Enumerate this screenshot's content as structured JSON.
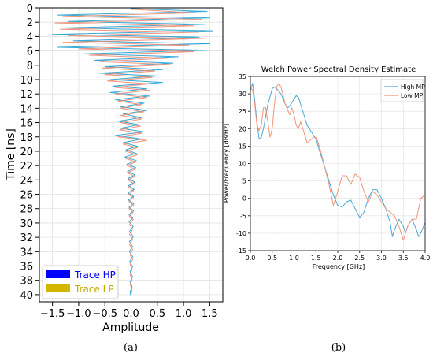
{
  "chart_data": [
    {
      "type": "line",
      "panel_label": "(a)",
      "title": "",
      "xlabel": "Amplitude",
      "ylabel": "Time [ns]",
      "xlim": [
        -1.75,
        1.75
      ],
      "ylim": [
        0,
        41
      ],
      "y_inverted": true,
      "grid": true,
      "legend_placement": "lower-left",
      "xticks": [
        -1.5,
        -1.0,
        -0.5,
        0.0,
        0.5,
        1.0,
        1.5
      ],
      "xtick_labels": [
        "−1.5",
        "−1.0",
        "−0.5",
        "0.0",
        "0.5",
        "1.0",
        "1.5"
      ],
      "yticks": [
        0,
        2,
        4,
        6,
        8,
        10,
        12,
        14,
        16,
        18,
        20,
        22,
        24,
        26,
        28,
        30,
        32,
        34,
        36,
        38,
        40
      ],
      "series": [
        {
          "name": "Trace HP",
          "legend_color": "#0000ff",
          "line_color": "#1f9fd0",
          "points": [
            [
              0.0,
              0.1
            ],
            [
              1.45,
              0.5
            ],
            [
              -1.4,
              1.0
            ],
            [
              1.5,
              1.4
            ],
            [
              -1.2,
              1.9
            ],
            [
              1.4,
              2.3
            ],
            [
              -1.3,
              2.8
            ],
            [
              1.55,
              3.2
            ],
            [
              -1.5,
              3.7
            ],
            [
              1.3,
              4.1
            ],
            [
              -1.1,
              4.6
            ],
            [
              1.5,
              5.0
            ],
            [
              -1.4,
              5.5
            ],
            [
              1.45,
              5.9
            ],
            [
              -0.9,
              6.4
            ],
            [
              0.9,
              6.8
            ],
            [
              -0.7,
              7.3
            ],
            [
              0.8,
              7.7
            ],
            [
              -0.5,
              8.2
            ],
            [
              0.6,
              8.6
            ],
            [
              -0.6,
              9.1
            ],
            [
              0.5,
              9.5
            ],
            [
              -0.4,
              10.0
            ],
            [
              0.6,
              10.4
            ],
            [
              -0.35,
              10.9
            ],
            [
              0.3,
              11.3
            ],
            [
              -0.4,
              11.8
            ],
            [
              0.35,
              12.3
            ],
            [
              -0.3,
              12.8
            ],
            [
              0.25,
              13.3
            ],
            [
              -0.2,
              13.8
            ],
            [
              0.3,
              14.3
            ],
            [
              -0.15,
              14.8
            ],
            [
              0.2,
              15.3
            ],
            [
              -0.25,
              15.8
            ],
            [
              0.15,
              16.3
            ],
            [
              -0.2,
              16.8
            ],
            [
              0.25,
              17.3
            ],
            [
              -0.3,
              17.8
            ],
            [
              0.2,
              18.3
            ],
            [
              -0.15,
              18.8
            ],
            [
              0.12,
              19.3
            ],
            [
              -0.1,
              19.8
            ],
            [
              0.1,
              20.3
            ],
            [
              -0.12,
              20.8
            ],
            [
              0.1,
              21.3
            ],
            [
              -0.08,
              21.8
            ],
            [
              0.09,
              22.3
            ],
            [
              -0.07,
              22.8
            ],
            [
              0.08,
              23.3
            ],
            [
              -0.06,
              23.8
            ],
            [
              0.07,
              24.3
            ],
            [
              -0.05,
              24.8
            ],
            [
              0.06,
              25.3
            ],
            [
              -0.06,
              25.8
            ],
            [
              0.05,
              26.3
            ],
            [
              -0.05,
              26.8
            ],
            [
              0.05,
              27.3
            ],
            [
              -0.04,
              27.8
            ],
            [
              0.05,
              28.3
            ],
            [
              -0.04,
              28.8
            ],
            [
              0.04,
              29.3
            ],
            [
              -0.04,
              29.8
            ],
            [
              0.04,
              30.5
            ],
            [
              -0.03,
              31.2
            ],
            [
              0.04,
              31.9
            ],
            [
              -0.03,
              32.6
            ],
            [
              0.03,
              33.3
            ],
            [
              -0.03,
              34.0
            ],
            [
              0.03,
              34.7
            ],
            [
              -0.03,
              35.4
            ],
            [
              0.03,
              36.1
            ],
            [
              -0.02,
              36.8
            ],
            [
              0.03,
              37.5
            ],
            [
              -0.02,
              38.2
            ],
            [
              0.02,
              38.9
            ],
            [
              -0.02,
              39.6
            ],
            [
              0.0,
              40.3
            ]
          ]
        },
        {
          "name": "Trace LP",
          "legend_color": "#d4b800",
          "line_color": "#f08a70",
          "points": [
            [
              0.0,
              0.2
            ],
            [
              1.2,
              0.7
            ],
            [
              -1.3,
              1.2
            ],
            [
              1.35,
              1.6
            ],
            [
              -1.45,
              2.1
            ],
            [
              1.2,
              2.5
            ],
            [
              -1.35,
              3.0
            ],
            [
              1.3,
              3.4
            ],
            [
              -1.2,
              3.9
            ],
            [
              1.4,
              4.3
            ],
            [
              -1.3,
              4.8
            ],
            [
              1.1,
              5.2
            ],
            [
              -1.0,
              5.7
            ],
            [
              1.2,
              6.1
            ],
            [
              -0.8,
              6.6
            ],
            [
              0.7,
              7.0
            ],
            [
              -0.6,
              7.5
            ],
            [
              0.75,
              7.9
            ],
            [
              -0.55,
              8.4
            ],
            [
              0.45,
              8.8
            ],
            [
              -0.5,
              9.3
            ],
            [
              0.4,
              9.7
            ],
            [
              -0.45,
              10.2
            ],
            [
              0.35,
              10.6
            ],
            [
              -0.3,
              11.1
            ],
            [
              0.35,
              11.5
            ],
            [
              -0.3,
              12.0
            ],
            [
              0.3,
              12.5
            ],
            [
              -0.25,
              13.0
            ],
            [
              0.2,
              13.5
            ],
            [
              -0.2,
              14.0
            ],
            [
              0.25,
              14.5
            ],
            [
              -0.2,
              15.0
            ],
            [
              0.2,
              15.5
            ],
            [
              -0.2,
              16.0
            ],
            [
              0.18,
              16.5
            ],
            [
              -0.22,
              17.0
            ],
            [
              0.2,
              17.5
            ],
            [
              -0.25,
              18.0
            ],
            [
              0.3,
              18.5
            ],
            [
              -0.15,
              19.0
            ],
            [
              0.12,
              19.5
            ],
            [
              -0.1,
              20.0
            ],
            [
              0.12,
              20.5
            ],
            [
              -0.1,
              21.0
            ],
            [
              0.09,
              21.5
            ],
            [
              -0.08,
              22.0
            ],
            [
              0.08,
              22.5
            ],
            [
              -0.07,
              23.0
            ],
            [
              0.07,
              23.5
            ],
            [
              -0.06,
              24.0
            ],
            [
              0.06,
              24.5
            ],
            [
              -0.05,
              25.0
            ],
            [
              0.05,
              25.5
            ],
            [
              -0.05,
              26.0
            ],
            [
              0.05,
              26.5
            ],
            [
              -0.04,
              27.0
            ],
            [
              0.05,
              27.5
            ],
            [
              -0.04,
              28.0
            ],
            [
              0.04,
              28.5
            ],
            [
              -0.04,
              29.0
            ],
            [
              0.04,
              29.5
            ],
            [
              -0.03,
              30.2
            ],
            [
              0.03,
              30.9
            ],
            [
              -0.03,
              31.6
            ],
            [
              0.03,
              32.3
            ],
            [
              -0.03,
              33.0
            ],
            [
              0.03,
              33.7
            ],
            [
              -0.02,
              34.4
            ],
            [
              0.03,
              35.1
            ],
            [
              -0.02,
              35.8
            ],
            [
              0.02,
              36.5
            ],
            [
              -0.02,
              37.2
            ],
            [
              0.02,
              37.9
            ],
            [
              -0.02,
              38.6
            ],
            [
              0.02,
              39.3
            ],
            [
              0.0,
              40.0
            ]
          ]
        }
      ]
    },
    {
      "type": "line",
      "panel_label": "(b)",
      "title": "Welch Power Spectral Density Estimate",
      "xlabel": "Frequency [GHz]",
      "ylabel": "Power/Frequency [dB/Hz]",
      "xlim": [
        0.0,
        4.0
      ],
      "ylim": [
        -15,
        35
      ],
      "grid": true,
      "legend_placement": "top-right",
      "xticks": [
        0.0,
        0.5,
        1.0,
        1.5,
        2.0,
        2.5,
        3.0,
        3.5,
        4.0
      ],
      "xtick_labels": [
        "0.0",
        "0.5",
        "1.0",
        "1.5",
        "2.0",
        "2.5",
        "3.0",
        "3.5",
        "4.0"
      ],
      "yticks": [
        -15,
        -10,
        -5,
        0,
        5,
        10,
        15,
        20,
        25,
        30,
        35
      ],
      "series": [
        {
          "name": "High MP",
          "color": "#4aa8d8",
          "points": [
            [
              0.0,
              31
            ],
            [
              0.05,
              33
            ],
            [
              0.1,
              28
            ],
            [
              0.15,
              22
            ],
            [
              0.2,
              17
            ],
            [
              0.25,
              17.5
            ],
            [
              0.3,
              20
            ],
            [
              0.4,
              27
            ],
            [
              0.5,
              31.5
            ],
            [
              0.55,
              32
            ],
            [
              0.6,
              31.5
            ],
            [
              0.7,
              30
            ],
            [
              0.8,
              27
            ],
            [
              0.85,
              26
            ],
            [
              0.9,
              26.5
            ],
            [
              1.0,
              28.5
            ],
            [
              1.05,
              29.5
            ],
            [
              1.1,
              29
            ],
            [
              1.2,
              25
            ],
            [
              1.3,
              21
            ],
            [
              1.4,
              19
            ],
            [
              1.5,
              17
            ],
            [
              1.6,
              13
            ],
            [
              1.7,
              9
            ],
            [
              1.8,
              5
            ],
            [
              1.9,
              1
            ],
            [
              2.0,
              -2
            ],
            [
              2.1,
              -2.5
            ],
            [
              2.2,
              -1
            ],
            [
              2.3,
              -0.5
            ],
            [
              2.4,
              -3
            ],
            [
              2.5,
              -5.5
            ],
            [
              2.6,
              -4
            ],
            [
              2.7,
              0
            ],
            [
              2.8,
              2.5
            ],
            [
              2.9,
              2.5
            ],
            [
              3.0,
              0
            ],
            [
              3.1,
              -3
            ],
            [
              3.2,
              -7
            ],
            [
              3.25,
              -11
            ],
            [
              3.3,
              -9
            ],
            [
              3.4,
              -6
            ],
            [
              3.5,
              -8
            ],
            [
              3.55,
              -10
            ],
            [
              3.6,
              -8
            ],
            [
              3.7,
              -6
            ],
            [
              3.8,
              -9
            ],
            [
              3.85,
              -11
            ],
            [
              3.9,
              -10
            ],
            [
              4.0,
              -7
            ]
          ]
        },
        {
          "name": "Low MP",
          "color": "#f0957a",
          "points": [
            [
              0.0,
              32
            ],
            [
              0.05,
              31
            ],
            [
              0.1,
              27
            ],
            [
              0.15,
              21
            ],
            [
              0.2,
              19.5
            ],
            [
              0.25,
              21
            ],
            [
              0.3,
              26
            ],
            [
              0.35,
              26
            ],
            [
              0.4,
              22
            ],
            [
              0.45,
              17.5
            ],
            [
              0.5,
              20
            ],
            [
              0.55,
              27
            ],
            [
              0.6,
              32
            ],
            [
              0.65,
              33
            ],
            [
              0.7,
              32
            ],
            [
              0.8,
              27
            ],
            [
              0.9,
              24
            ],
            [
              0.95,
              26
            ],
            [
              1.0,
              24
            ],
            [
              1.05,
              21
            ],
            [
              1.1,
              20
            ],
            [
              1.15,
              22
            ],
            [
              1.2,
              20
            ],
            [
              1.3,
              16
            ],
            [
              1.4,
              17
            ],
            [
              1.5,
              18
            ],
            [
              1.6,
              14
            ],
            [
              1.7,
              9
            ],
            [
              1.8,
              4
            ],
            [
              1.9,
              -2
            ],
            [
              2.0,
              2
            ],
            [
              2.1,
              6.5
            ],
            [
              2.2,
              6.5
            ],
            [
              2.3,
              4
            ],
            [
              2.4,
              7
            ],
            [
              2.5,
              6
            ],
            [
              2.6,
              2
            ],
            [
              2.7,
              -1
            ],
            [
              2.8,
              2
            ],
            [
              2.9,
              1
            ],
            [
              3.0,
              -1
            ],
            [
              3.1,
              -3
            ],
            [
              3.2,
              -4
            ],
            [
              3.3,
              -5
            ],
            [
              3.4,
              -8
            ],
            [
              3.5,
              -12
            ],
            [
              3.6,
              -8
            ],
            [
              3.7,
              -6
            ],
            [
              3.8,
              -6
            ],
            [
              3.9,
              0
            ],
            [
              4.0,
              1
            ]
          ]
        }
      ]
    }
  ]
}
